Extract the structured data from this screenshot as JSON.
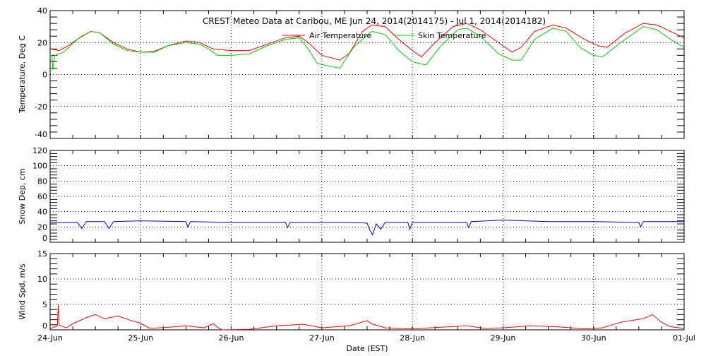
{
  "chart_data": [
    {
      "type": "line",
      "title": "CREST Meteo Data at Caribou, ME   Jun 24, 2014(2014175) - Jul  1, 2014(2014182)",
      "ylabel": "Temperature, Deg C",
      "ylim": [
        -40,
        40
      ],
      "yticks": [
        -40,
        -20,
        0,
        20,
        40
      ],
      "legend": [
        "Air Temperature",
        "Skin Temperature"
      ],
      "legend_placement": "top-center",
      "x_unit": "days since 24-Jun 00:00 EST",
      "series": [
        {
          "name": "Air Temperature",
          "color": "#ff0000",
          "points": [
            [
              0,
              16
            ],
            [
              0.1,
              15
            ],
            [
              0.2,
              18
            ],
            [
              0.35,
              24
            ],
            [
              0.45,
              27
            ],
            [
              0.55,
              26
            ],
            [
              0.7,
              20
            ],
            [
              0.85,
              16
            ],
            [
              1.0,
              14
            ],
            [
              1.15,
              14.5
            ],
            [
              1.3,
              18
            ],
            [
              1.5,
              21
            ],
            [
              1.65,
              20
            ],
            [
              1.8,
              16
            ],
            [
              2.0,
              15
            ],
            [
              2.2,
              15
            ],
            [
              2.4,
              19
            ],
            [
              2.6,
              23
            ],
            [
              2.75,
              24
            ],
            [
              2.85,
              20
            ],
            [
              3.0,
              12
            ],
            [
              3.2,
              9
            ],
            [
              3.3,
              13
            ],
            [
              3.45,
              27
            ],
            [
              3.55,
              31
            ],
            [
              3.7,
              30
            ],
            [
              3.85,
              22
            ],
            [
              4.0,
              15
            ],
            [
              4.1,
              11
            ],
            [
              4.25,
              20
            ],
            [
              4.45,
              30
            ],
            [
              4.6,
              32
            ],
            [
              4.75,
              28
            ],
            [
              4.95,
              20
            ],
            [
              5.1,
              14
            ],
            [
              5.2,
              17
            ],
            [
              5.35,
              27
            ],
            [
              5.55,
              31
            ],
            [
              5.7,
              29
            ],
            [
              5.9,
              22
            ],
            [
              6.05,
              18
            ],
            [
              6.15,
              17
            ],
            [
              6.35,
              26
            ],
            [
              6.55,
              32
            ],
            [
              6.7,
              31
            ],
            [
              6.85,
              27
            ],
            [
              7.0,
              23
            ]
          ]
        },
        {
          "name": "Skin Temperature",
          "color": "#00cc00",
          "points": [
            [
              0,
              12
            ],
            [
              0.02,
              12
            ],
            [
              0.03,
              3
            ],
            [
              0.05,
              12
            ],
            [
              0.15,
              14
            ],
            [
              0.3,
              22
            ],
            [
              0.45,
              27
            ],
            [
              0.55,
              26
            ],
            [
              0.7,
              19
            ],
            [
              0.85,
              15
            ],
            [
              1.0,
              14
            ],
            [
              1.15,
              14
            ],
            [
              1.3,
              18
            ],
            [
              1.5,
              20
            ],
            [
              1.65,
              19
            ],
            [
              1.75,
              16
            ],
            [
              1.85,
              12
            ],
            [
              2.0,
              12
            ],
            [
              2.2,
              13
            ],
            [
              2.4,
              18
            ],
            [
              2.6,
              22
            ],
            [
              2.75,
              23
            ],
            [
              2.85,
              16
            ],
            [
              2.95,
              7
            ],
            [
              3.1,
              5
            ],
            [
              3.2,
              4
            ],
            [
              3.35,
              17
            ],
            [
              3.55,
              27
            ],
            [
              3.7,
              25
            ],
            [
              3.85,
              15
            ],
            [
              4.0,
              8
            ],
            [
              4.15,
              6
            ],
            [
              4.3,
              17
            ],
            [
              4.5,
              28
            ],
            [
              4.6,
              29
            ],
            [
              4.75,
              24
            ],
            [
              4.95,
              13
            ],
            [
              5.1,
              9
            ],
            [
              5.2,
              9
            ],
            [
              5.35,
              22
            ],
            [
              5.55,
              29
            ],
            [
              5.7,
              27
            ],
            [
              5.85,
              17
            ],
            [
              6.0,
              12
            ],
            [
              6.1,
              11
            ],
            [
              6.3,
              20
            ],
            [
              6.55,
              30
            ],
            [
              6.7,
              28
            ],
            [
              6.85,
              22
            ],
            [
              7.0,
              17
            ]
          ]
        }
      ]
    },
    {
      "type": "line",
      "ylabel": "Snow Dep, cm",
      "ylim": [
        0,
        120
      ],
      "yticks": [
        0,
        20,
        40,
        60,
        80,
        100,
        120
      ],
      "series": [
        {
          "name": "Snow Depth",
          "color": "#0000cc",
          "points": [
            [
              0,
              26
            ],
            [
              0.3,
              26
            ],
            [
              0.35,
              18
            ],
            [
              0.4,
              27
            ],
            [
              0.6,
              27
            ],
            [
              0.65,
              18
            ],
            [
              0.7,
              27
            ],
            [
              1.0,
              28
            ],
            [
              1.5,
              27
            ],
            [
              1.52,
              20
            ],
            [
              1.55,
              27
            ],
            [
              2.0,
              26
            ],
            [
              2.6,
              26
            ],
            [
              2.62,
              19
            ],
            [
              2.65,
              26
            ],
            [
              3.3,
              26
            ],
            [
              3.5,
              25
            ],
            [
              3.53,
              16
            ],
            [
              3.56,
              10
            ],
            [
              3.6,
              24
            ],
            [
              3.65,
              17
            ],
            [
              3.7,
              26
            ],
            [
              3.95,
              26
            ],
            [
              3.97,
              17
            ],
            [
              4.0,
              26
            ],
            [
              4.6,
              26
            ],
            [
              4.62,
              19
            ],
            [
              4.65,
              27
            ],
            [
              5.0,
              29
            ],
            [
              5.5,
              27
            ],
            [
              6.0,
              27
            ],
            [
              6.5,
              26
            ],
            [
              6.52,
              20
            ],
            [
              6.55,
              27
            ],
            [
              7.0,
              27
            ]
          ]
        }
      ]
    },
    {
      "type": "line",
      "ylabel": "Wind Spd, m/s",
      "xlabel": "Date (EST)",
      "ylim": [
        0,
        15
      ],
      "yticks": [
        0,
        5,
        10,
        15
      ],
      "xticks": [
        "24-Jun",
        "25-Jun",
        "26-Jun",
        "27-Jun",
        "28-Jun",
        "29-Jun",
        "30-Jun",
        "01-Jul"
      ],
      "series": [
        {
          "name": "Wind Speed",
          "color": "#ff0000",
          "points": [
            [
              0,
              0.2
            ],
            [
              0.08,
              0.8
            ],
            [
              0.09,
              5
            ],
            [
              0.1,
              0.9
            ],
            [
              0.18,
              0.4
            ],
            [
              0.25,
              1.2
            ],
            [
              0.4,
              2.4
            ],
            [
              0.5,
              3
            ],
            [
              0.6,
              2.2
            ],
            [
              0.75,
              2.7
            ],
            [
              0.9,
              1.8
            ],
            [
              1.0,
              1.3
            ],
            [
              1.1,
              0.3
            ],
            [
              1.3,
              0.5
            ],
            [
              1.5,
              0.8
            ],
            [
              1.7,
              0.4
            ],
            [
              1.8,
              1.2
            ],
            [
              1.85,
              0.5
            ],
            [
              1.9,
              0
            ],
            [
              2.2,
              0.1
            ],
            [
              2.5,
              0.8
            ],
            [
              2.8,
              1.1
            ],
            [
              3.0,
              0.4
            ],
            [
              3.3,
              0.8
            ],
            [
              3.5,
              1.8
            ],
            [
              3.55,
              1.2
            ],
            [
              3.7,
              0.4
            ],
            [
              4.0,
              0.2
            ],
            [
              4.3,
              0.5
            ],
            [
              4.6,
              0.8
            ],
            [
              4.8,
              0.3
            ],
            [
              5.0,
              0.4
            ],
            [
              5.3,
              0.8
            ],
            [
              5.6,
              0.6
            ],
            [
              5.9,
              0.2
            ],
            [
              6.1,
              0.4
            ],
            [
              6.3,
              1.5
            ],
            [
              6.55,
              2.2
            ],
            [
              6.65,
              3
            ],
            [
              6.75,
              1.5
            ],
            [
              6.85,
              0.6
            ],
            [
              7.0,
              0.3
            ]
          ]
        }
      ]
    }
  ]
}
